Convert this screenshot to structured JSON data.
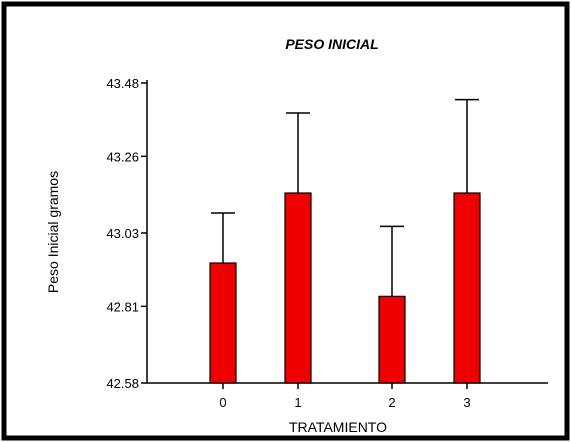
{
  "chart_data": {
    "type": "bar",
    "title": "PESO INICIAL",
    "xlabel": "TRATAMIENTO",
    "ylabel": "Peso Inicial gramos",
    "categories": [
      "0",
      "1",
      "2",
      "3"
    ],
    "series": [
      {
        "values": [
          42.94,
          43.15,
          42.84,
          43.15
        ],
        "error_upper": [
          43.09,
          43.39,
          43.05,
          43.43
        ]
      }
    ],
    "yticks": [
      "42.58",
      "42.81",
      "43.03",
      "43.26",
      "43.48"
    ],
    "ylim": [
      42.58,
      43.48
    ],
    "grid": false,
    "bar_color": "#ee0000",
    "error_bar_style": "upper cap only"
  }
}
